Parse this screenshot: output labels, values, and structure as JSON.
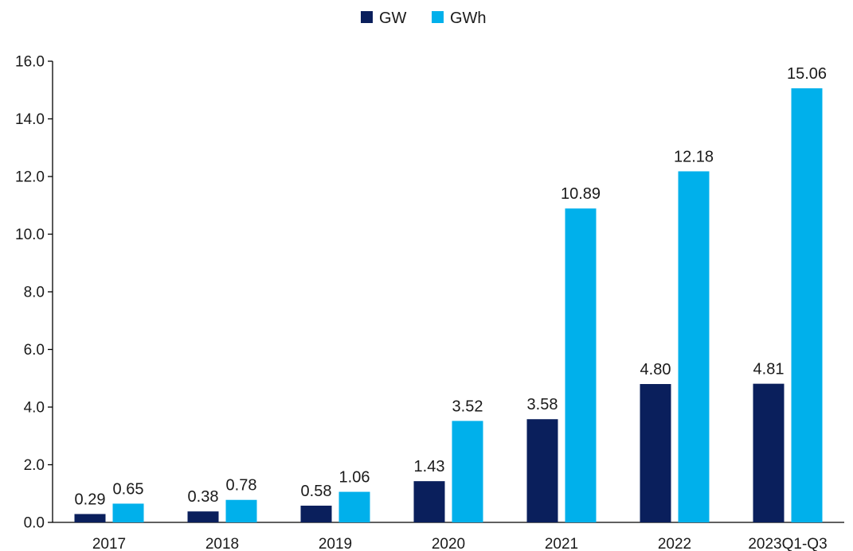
{
  "chart_data": {
    "type": "bar",
    "categories": [
      "2017",
      "2018",
      "2019",
      "2020",
      "2021",
      "2022",
      "2023Q1-Q3"
    ],
    "series": [
      {
        "name": "GW",
        "color": "#0a1f5c",
        "values": [
          0.29,
          0.38,
          0.58,
          1.43,
          3.58,
          4.8,
          4.81
        ],
        "labels": [
          "0.29",
          "0.38",
          "0.58",
          "1.43",
          "3.58",
          "4.80",
          "4.81"
        ]
      },
      {
        "name": "GWh",
        "color": "#00b0eb",
        "values": [
          0.65,
          0.78,
          1.06,
          3.52,
          10.89,
          12.18,
          15.06
        ],
        "labels": [
          "0.65",
          "0.78",
          "1.06",
          "3.52",
          "10.89",
          "12.18",
          "15.06"
        ]
      }
    ],
    "ylim": [
      0,
      16
    ],
    "yticks": [
      "0.0",
      "2.0",
      "4.0",
      "6.0",
      "8.0",
      "10.0",
      "12.0",
      "14.0",
      "16.0"
    ],
    "xlabel": "",
    "ylabel": "",
    "title": "",
    "grid": false,
    "legend_position": "top-center",
    "data_labels": true
  }
}
